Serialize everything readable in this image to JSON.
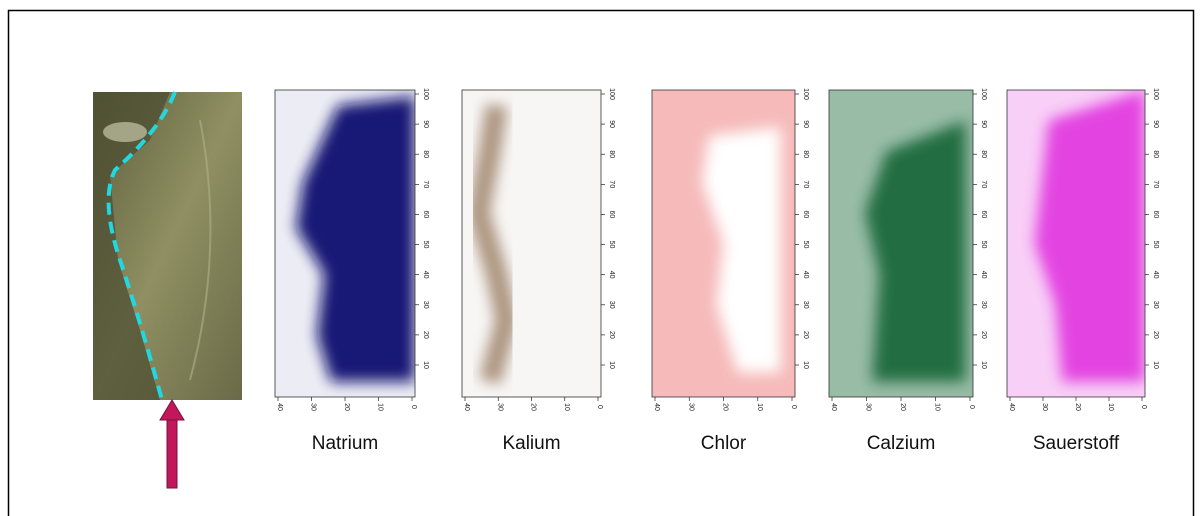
{
  "figure": {
    "panels": [
      {
        "label": "Natrium",
        "color": "#0c0c70",
        "x_ticks": [
          "40",
          "30",
          "20",
          "10",
          "0"
        ],
        "y_ticks": [
          "100",
          "90",
          "80",
          "70",
          "60",
          "50",
          "40",
          "30",
          "20",
          "10"
        ]
      },
      {
        "label": "Kalium",
        "color": "#7a5533",
        "x_ticks": [
          "40",
          "30",
          "20",
          "10",
          "0"
        ],
        "y_ticks": [
          "100",
          "90",
          "80",
          "70",
          "60",
          "50",
          "40",
          "30",
          "20",
          "10"
        ]
      },
      {
        "label": "Chlor",
        "color": "#e63a3a",
        "x_ticks": [
          "40",
          "30",
          "20",
          "10",
          "0"
        ],
        "y_ticks": [
          "100",
          "90",
          "80",
          "70",
          "60",
          "50",
          "40",
          "30",
          "20",
          "10"
        ]
      },
      {
        "label": "Calzium",
        "color": "#1d6a3c",
        "x_ticks": [
          "40",
          "30",
          "20",
          "10",
          "0"
        ],
        "y_ticks": [
          "100",
          "90",
          "80",
          "70",
          "60",
          "50",
          "40",
          "30",
          "20",
          "10"
        ]
      },
      {
        "label": "Sauerstoff",
        "color": "#e23ee0",
        "x_ticks": [
          "40",
          "30",
          "20",
          "10",
          "0"
        ],
        "y_ticks": [
          "100",
          "90",
          "80",
          "70",
          "60",
          "50",
          "40",
          "30",
          "20",
          "10"
        ]
      }
    ]
  }
}
